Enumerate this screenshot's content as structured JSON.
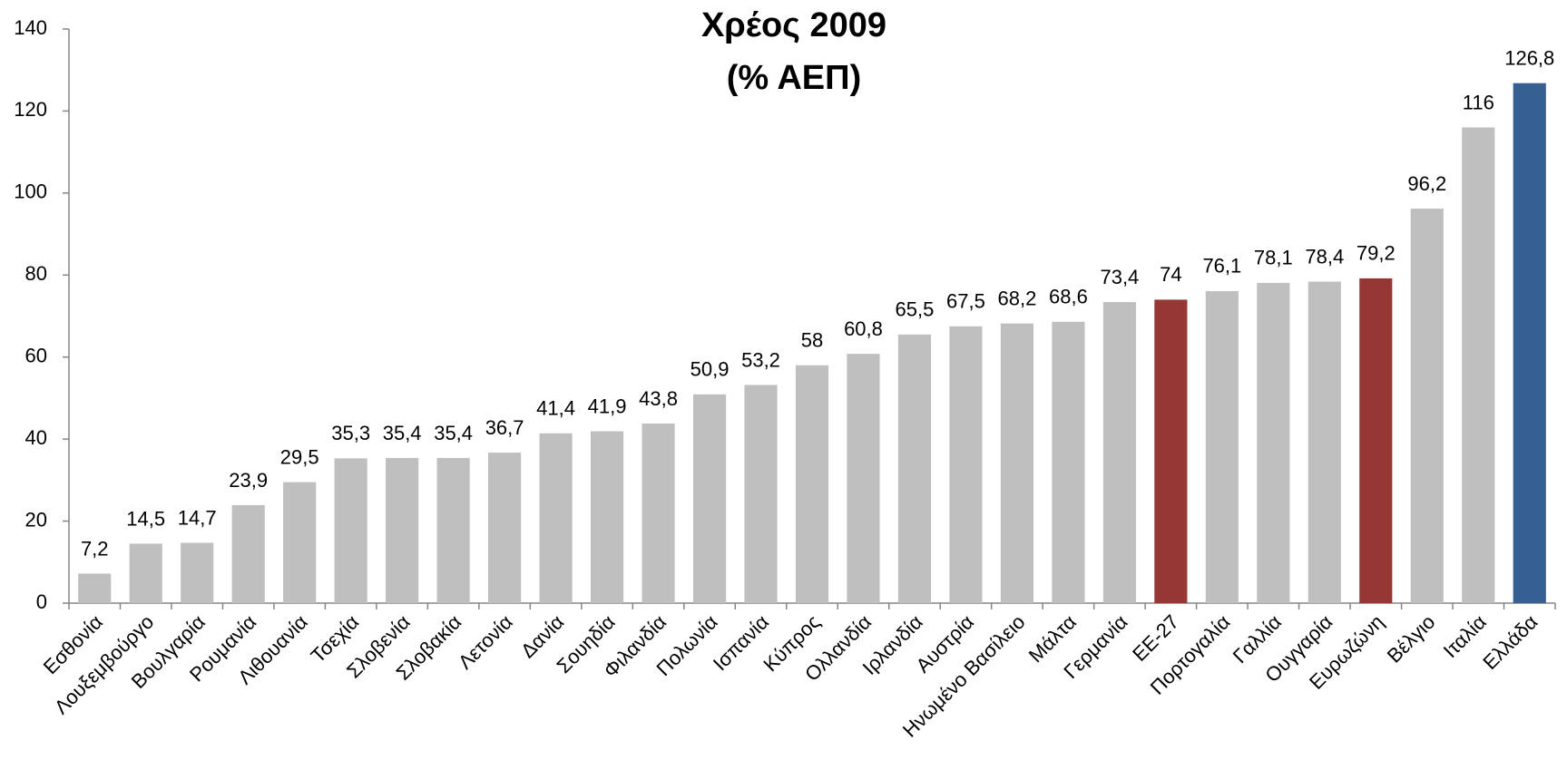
{
  "chart_data": {
    "type": "bar",
    "title": "Χρέος 2009",
    "subtitle": "(% ΑΕΠ)",
    "categories": [
      "Εσθονία",
      "Λουξεμβούργο",
      "Βουλγαρία",
      "Ρουμανία",
      "Λιθουανία",
      "Τσεχία",
      "Σλοβενία",
      "Σλοβακία",
      "Λετονία",
      "Δανία",
      "Σουηδία",
      "Φιλανδία",
      "Πολωνία",
      "Ισπανία",
      "Κύπρος",
      "Ολλανδία",
      "Ιρλανδία",
      "Αυστρία",
      "Ηνωμένο Βασίλειο",
      "Μάλτα",
      "Γερμανία",
      "ΕΕ-27",
      "Πορτογαλία",
      "Γαλλία",
      "Ουγγαρία",
      "Ευρωζώνη",
      "Βέλγιο",
      "Ιταλία",
      "Ελλάδα"
    ],
    "values": [
      7.2,
      14.5,
      14.7,
      23.9,
      29.5,
      35.3,
      35.4,
      35.4,
      36.7,
      41.4,
      41.9,
      43.8,
      50.9,
      53.2,
      58,
      60.8,
      65.5,
      67.5,
      68.2,
      68.6,
      73.4,
      74,
      76.1,
      78.1,
      78.4,
      79.2,
      96.2,
      116,
      126.8
    ],
    "value_labels": [
      "7,2",
      "14,5",
      "14,7",
      "23,9",
      "29,5",
      "35,3",
      "35,4",
      "35,4",
      "36,7",
      "41,4",
      "41,9",
      "43,8",
      "50,9",
      "53,2",
      "58",
      "60,8",
      "65,5",
      "67,5",
      "68,2",
      "68,6",
      "73,4",
      "74",
      "76,1",
      "78,1",
      "78,4",
      "79,2",
      "96,2",
      "116",
      "126,8"
    ],
    "colors": [
      "#bfbfbf",
      "#bfbfbf",
      "#bfbfbf",
      "#bfbfbf",
      "#bfbfbf",
      "#bfbfbf",
      "#bfbfbf",
      "#bfbfbf",
      "#bfbfbf",
      "#bfbfbf",
      "#bfbfbf",
      "#bfbfbf",
      "#bfbfbf",
      "#bfbfbf",
      "#bfbfbf",
      "#bfbfbf",
      "#bfbfbf",
      "#bfbfbf",
      "#bfbfbf",
      "#bfbfbf",
      "#bfbfbf",
      "#953735",
      "#bfbfbf",
      "#bfbfbf",
      "#bfbfbf",
      "#953735",
      "#bfbfbf",
      "#bfbfbf",
      "#376092"
    ],
    "ylim": [
      0,
      140
    ],
    "yticks": [
      0,
      20,
      40,
      60,
      80,
      100,
      120,
      140
    ],
    "grid": false
  }
}
